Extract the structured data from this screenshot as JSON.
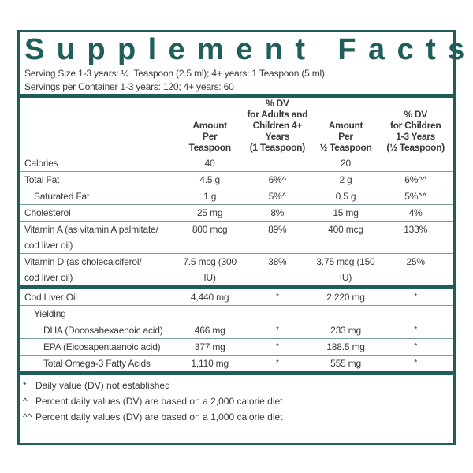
{
  "title": "Supplement Facts",
  "serving": [
    "Serving Size 1-3 years: ½  Teaspoon (2.5 ml); 4+ years: 1 Teaspoon (5 ml)",
    "Servings per Container 1-3 years: 120; 4+ years: 60"
  ],
  "table": {
    "headers": [
      "Amount\nPer\nTeaspoon",
      "% DV\nfor Adults and\nChildren 4+ Years\n(1 Teaspoon)",
      "Amount\nPer\n½ Teaspoon",
      "% DV\nfor Children\n1-3 Years\n(½ Teaspoon)"
    ],
    "sections": [
      {
        "rows": [
          {
            "label": "Calories",
            "amount": "40",
            "amount_child": "20"
          },
          {
            "label": "Total Fat",
            "amount": "4.5  g",
            "dv": "6%^",
            "amount_child": "2 g",
            "dv_child": "6%^^"
          },
          {
            "label": "Saturated Fat",
            "indent": 1,
            "amount": "1 g",
            "dv": "5%^",
            "amount_child": "0.5 g",
            "dv_child": "5%^^"
          },
          {
            "label": "Cholesterol",
            "amount": "25  mg",
            "dv": "8%",
            "amount_child": "15 mg",
            "dv_child": "4%"
          },
          {
            "label": "Vitamin A (as vitamin A palmitate/\ncod liver oil)",
            "amount": "800  mcg",
            "dv": "89%",
            "amount_child": "400 mcg",
            "dv_child": "133%"
          },
          {
            "label": "Vitamin D (as cholecalciferol/\ncod liver oil)",
            "amount": "7.5 mcg (300  IU)",
            "dv": "38%",
            "amount_child": "3.75 mcg (150 IU)",
            "dv_child": "25%"
          }
        ]
      },
      {
        "rows": [
          {
            "label": "Cod Liver Oil",
            "amount": "4,440 mg",
            "dv": "*",
            "amount_child": "2,220 mg",
            "dv_child": "*"
          },
          {
            "label": "Yielding",
            "indent": 1
          },
          {
            "label": "DHA (Docosahexaenoic acid)",
            "indent": 2,
            "amount": "466 mg",
            "dv": "*",
            "amount_child": "233 mg",
            "dv_child": "*"
          },
          {
            "label": "EPA (Eicosapentaenoic acid)",
            "indent": 2,
            "amount": "377 mg",
            "dv": "*",
            "amount_child": "188.5 mg",
            "dv_child": "*"
          },
          {
            "label": "Total Omega-3 Fatty Acids",
            "indent": 2,
            "amount": "1,110 mg",
            "dv": "*",
            "amount_child": "555 mg",
            "dv_child": "*"
          }
        ]
      }
    ]
  },
  "footnotes": [
    {
      "symbol": "*",
      "text": "Daily value (DV) not established"
    },
    {
      "symbol": "^",
      "text": "Percent daily values (DV) are based on a 2,000 calorie diet"
    },
    {
      "symbol": "^^",
      "text": "Percent daily values (DV) are based on a 1,000 calorie diet"
    }
  ]
}
